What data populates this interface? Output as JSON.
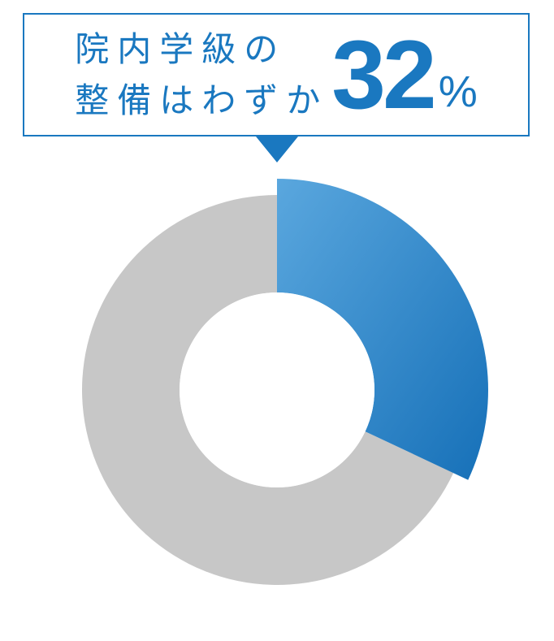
{
  "callout": {
    "text_line1": "院内学級の",
    "text_line2": "整備はわずか",
    "number": "32",
    "percent_symbol": "%",
    "text_color": "#1a78c0",
    "border_color": "#1a78c0",
    "number_fontsize": 120,
    "text_fontsize": 42,
    "percent_fontsize": 54
  },
  "pointer": {
    "color": "#1a78c0",
    "width": 52,
    "height": 32
  },
  "chart": {
    "type": "donut",
    "size": 520,
    "outer_radius_highlight": 260,
    "outer_radius_rest": 240,
    "inner_radius": 120,
    "center_fill": "#ffffff",
    "background_color": "#ffffff",
    "slices": [
      {
        "label": "highlighted",
        "value": 32,
        "start_angle_deg": 0,
        "end_angle_deg": 115.2,
        "outer_radius": 260,
        "gradient_from": "#5aa7de",
        "gradient_to": "#1670b8"
      },
      {
        "label": "rest",
        "value": 68,
        "start_angle_deg": 115.2,
        "end_angle_deg": 360,
        "outer_radius": 240,
        "fill": "#c7c7c7"
      }
    ]
  }
}
